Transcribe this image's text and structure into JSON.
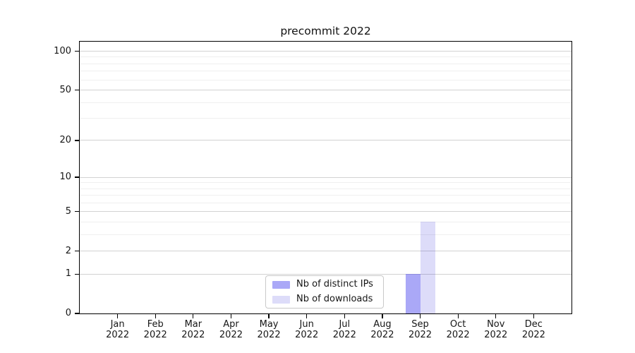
{
  "title": "precommit 2022",
  "colors": {
    "bar_distinct_ips_fill": "rgba(42,38,235,0.40)",
    "bar_distinct_ips_over_white": "#aaa8f7",
    "bar_downloads_fill": "rgba(12,5,212,0.14)",
    "bar_downloads_over_white": "#dddcf9",
    "grid_major": "#d2d2d2",
    "grid_minor": "#efefef",
    "spine": "#000000",
    "text": "#161616"
  },
  "legend": {
    "items": [
      {
        "label": "Nb of distinct IPs"
      },
      {
        "label": "Nb of downloads"
      }
    ]
  },
  "chart_data": {
    "type": "bar",
    "title": "precommit 2022",
    "xlabel": "",
    "ylabel": "",
    "y_scale": "log1p (linear-at-zero log scale)",
    "ylim": [
      0,
      118
    ],
    "grid": "both (major + minor horizontal gridlines)",
    "legend_position": "lower center, inside axes",
    "categories": [
      {
        "month": "Jan",
        "year": "2022"
      },
      {
        "month": "Feb",
        "year": "2022"
      },
      {
        "month": "Mar",
        "year": "2022"
      },
      {
        "month": "Apr",
        "year": "2022"
      },
      {
        "month": "May",
        "year": "2022"
      },
      {
        "month": "Jun",
        "year": "2022"
      },
      {
        "month": "Jul",
        "year": "2022"
      },
      {
        "month": "Aug",
        "year": "2022"
      },
      {
        "month": "Sep",
        "year": "2022"
      },
      {
        "month": "Oct",
        "year": "2022"
      },
      {
        "month": "Nov",
        "year": "2022"
      },
      {
        "month": "Dec",
        "year": "2022"
      }
    ],
    "series": [
      {
        "name": "Nb of distinct IPs",
        "values": [
          0,
          0,
          0,
          0,
          0,
          0,
          0,
          0,
          1,
          0,
          0,
          0
        ]
      },
      {
        "name": "Nb of downloads",
        "values": [
          0,
          0,
          0,
          0,
          0,
          0,
          0,
          0,
          4,
          0,
          0,
          0
        ]
      }
    ],
    "y_major_ticks": [
      0,
      1,
      2,
      5,
      10,
      20,
      50,
      100
    ],
    "y_minor_gridlines": [
      3,
      4,
      6,
      7,
      8,
      9,
      30,
      40,
      60,
      70,
      80,
      90
    ]
  }
}
